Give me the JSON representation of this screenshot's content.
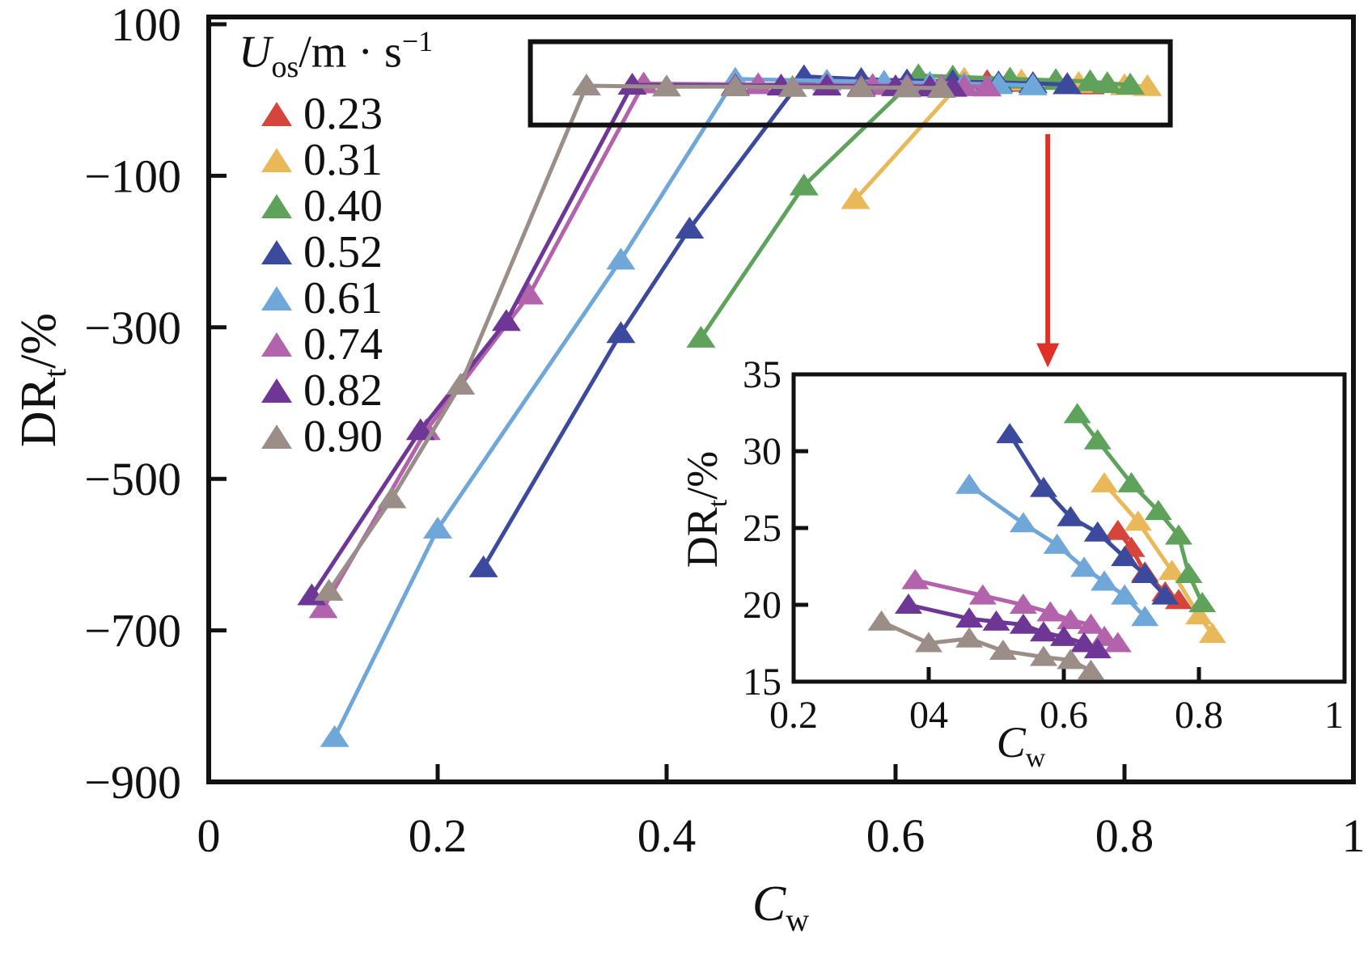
{
  "labels": {
    "y_title": "DR",
    "y_title_sub": "t",
    "y_title_suffix": "/%",
    "x_title": "C",
    "x_title_sub": "w"
  },
  "legend": {
    "title_u": "U",
    "title_sub": "os",
    "title_rest": "/m · s",
    "title_sup": "−1"
  },
  "chart_data": {
    "type": "line",
    "main": {
      "title": "",
      "xlabel": "C_w",
      "ylabel": "DR_t/%",
      "xlim": [
        0,
        1
      ],
      "ylim": [
        -900,
        100
      ],
      "grid": false,
      "legend_position": "upper-left",
      "legend_title": "U_os/m · s−1",
      "x_ticks": {
        "values": [
          0,
          0.2,
          0.4,
          0.6,
          0.8,
          1
        ],
        "labels": [
          "0",
          "0.2",
          "0.4",
          "0.6",
          "0.8",
          "1"
        ],
        "marks": [
          0.2,
          0.4,
          0.6,
          0.8
        ]
      },
      "y_ticks": {
        "values": [
          100,
          -100,
          -300,
          -500,
          -700,
          -900
        ],
        "labels": [
          "100",
          "−100",
          "−300",
          "−500",
          "−700",
          "−900"
        ],
        "marks": [
          100,
          -100,
          -300,
          -500,
          -700
        ]
      },
      "series": [
        {
          "name": "0.23",
          "color": "#d6453c",
          "marker": "triangle-up",
          "points": [
            [
              0.68,
              24.8
            ],
            [
              0.7,
              23.7
            ],
            [
              0.72,
              22.1
            ],
            [
              0.75,
              20.8
            ],
            [
              0.77,
              20.3
            ]
          ]
        },
        {
          "name": "0.31",
          "color": "#e9b858",
          "marker": "triangle-up",
          "points": [
            [
              0.565,
              -131
            ],
            [
              0.66,
              27.9
            ],
            [
              0.71,
              25.4
            ],
            [
              0.76,
              22.2
            ],
            [
              0.8,
              19.3
            ],
            [
              0.82,
              18.1
            ]
          ]
        },
        {
          "name": "0.40",
          "color": "#5fa25c",
          "marker": "triangle-up",
          "points": [
            [
              0.43,
              -314
            ],
            [
              0.52,
              -113
            ],
            [
              0.62,
              32.4
            ],
            [
              0.65,
              30.7
            ],
            [
              0.7,
              27.9
            ],
            [
              0.74,
              26.1
            ],
            [
              0.77,
              24.5
            ],
            [
              0.785,
              22.0
            ],
            [
              0.805,
              20.1
            ]
          ]
        },
        {
          "name": "0.52",
          "color": "#3c4a9e",
          "marker": "triangle-up",
          "points": [
            [
              0.24,
              -617
            ],
            [
              0.36,
              -308
            ],
            [
              0.42,
              -170
            ],
            [
              0.52,
              31.1
            ],
            [
              0.57,
              27.6
            ],
            [
              0.61,
              25.7
            ],
            [
              0.65,
              24.7
            ],
            [
              0.69,
              23.1
            ],
            [
              0.72,
              22.0
            ],
            [
              0.75,
              20.6
            ]
          ]
        },
        {
          "name": "0.61",
          "color": "#6fa7d8",
          "marker": "triangle-up",
          "points": [
            [
              0.11,
              -841
            ],
            [
              0.2,
              -566
            ],
            [
              0.36,
              -211
            ],
            [
              0.46,
              27.8
            ],
            [
              0.54,
              25.3
            ],
            [
              0.59,
              23.9
            ],
            [
              0.63,
              22.4
            ],
            [
              0.66,
              21.5
            ],
            [
              0.69,
              20.6
            ],
            [
              0.72,
              19.2
            ]
          ]
        },
        {
          "name": "0.74",
          "color": "#b263ab",
          "marker": "triangle-up",
          "points": [
            [
              0.1,
              -671
            ],
            [
              0.19,
              -436
            ],
            [
              0.28,
              -257
            ],
            [
              0.38,
              21.6
            ],
            [
              0.48,
              20.6
            ],
            [
              0.54,
              20.0
            ],
            [
              0.58,
              19.5
            ],
            [
              0.61,
              19.0
            ],
            [
              0.64,
              18.7
            ],
            [
              0.66,
              17.9
            ],
            [
              0.68,
              17.5
            ]
          ]
        },
        {
          "name": "0.82",
          "color": "#6f3795",
          "marker": "triangle-up",
          "points": [
            [
              0.09,
              -654
            ],
            [
              0.185,
              -436
            ],
            [
              0.26,
              -292
            ],
            [
              0.37,
              20.0
            ],
            [
              0.46,
              19.1
            ],
            [
              0.5,
              18.9
            ],
            [
              0.54,
              18.7
            ],
            [
              0.57,
              18.2
            ],
            [
              0.6,
              17.9
            ],
            [
              0.63,
              17.5
            ],
            [
              0.65,
              17.1
            ]
          ]
        },
        {
          "name": "0.90",
          "color": "#9b8e89",
          "marker": "triangle-up",
          "points": [
            [
              0.105,
              -648
            ],
            [
              0.16,
              -526
            ],
            [
              0.22,
              -376
            ],
            [
              0.33,
              18.9
            ],
            [
              0.4,
              17.5
            ],
            [
              0.46,
              17.8
            ],
            [
              0.51,
              17.0
            ],
            [
              0.57,
              16.6
            ],
            [
              0.61,
              16.4
            ],
            [
              0.64,
              15.7
            ]
          ]
        }
      ]
    },
    "inset": {
      "description": "magnified view of the boxed flat region; same series filtered to DR_t 15–35",
      "xlabel": "C_w",
      "ylabel": "DR_t/%",
      "xlim": [
        0.2,
        1
      ],
      "ylim": [
        15,
        35
      ],
      "grid": false,
      "x_ticks": {
        "values": [
          0.2,
          0.4,
          0.6,
          0.8,
          1
        ],
        "labels": [
          "0.2",
          "04",
          "0.6",
          "0.8",
          "1"
        ],
        "marks": [
          0.4,
          0.6,
          0.8
        ]
      },
      "y_ticks": {
        "values": [
          15,
          20,
          25,
          30,
          35
        ],
        "labels": [
          "15",
          "20",
          "25",
          "30",
          "35"
        ],
        "marks": [
          20,
          25,
          30
        ]
      }
    },
    "annotations": {
      "box": {
        "x": [
          0.281,
          0.84
        ],
        "y": [
          77,
          -33
        ],
        "color": "#111111"
      },
      "arrow": {
        "x": 0.733,
        "y_from": -45,
        "y_to": -353,
        "color": "#e03127"
      }
    }
  }
}
